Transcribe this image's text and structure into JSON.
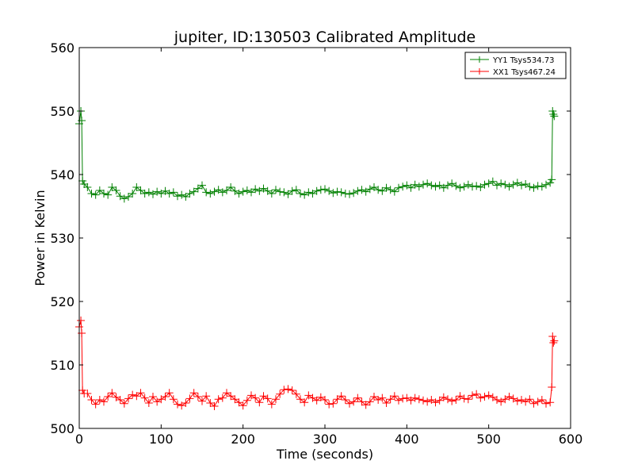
{
  "chart_data": {
    "type": "line",
    "title": "jupiter, ID:130503 Calibrated Amplitude",
    "xlabel": "Time (seconds)",
    "ylabel": "Power in Kelvin",
    "xlim": [
      0,
      600
    ],
    "ylim": [
      500,
      560
    ],
    "xticks": [
      0,
      100,
      200,
      300,
      400,
      500,
      600
    ],
    "yticks": [
      500,
      510,
      520,
      530,
      540,
      550,
      560
    ],
    "grid": false,
    "legend_position": "top-right",
    "marker": "+",
    "series": [
      {
        "name": "YY1 Tsys534.73",
        "color": "#008000",
        "x": [
          0,
          2,
          3,
          4,
          6,
          10,
          15,
          20,
          25,
          30,
          35,
          40,
          45,
          50,
          55,
          60,
          65,
          70,
          75,
          80,
          85,
          90,
          95,
          100,
          105,
          110,
          115,
          120,
          125,
          130,
          135,
          140,
          145,
          150,
          155,
          160,
          165,
          170,
          175,
          180,
          185,
          190,
          195,
          200,
          205,
          210,
          215,
          220,
          225,
          230,
          235,
          240,
          245,
          250,
          255,
          260,
          265,
          270,
          275,
          280,
          285,
          290,
          295,
          300,
          305,
          310,
          315,
          320,
          325,
          330,
          335,
          340,
          345,
          350,
          355,
          360,
          365,
          370,
          375,
          380,
          385,
          390,
          395,
          400,
          405,
          410,
          415,
          420,
          425,
          430,
          435,
          440,
          445,
          450,
          455,
          460,
          465,
          470,
          475,
          480,
          485,
          490,
          495,
          500,
          505,
          510,
          515,
          520,
          525,
          530,
          535,
          540,
          545,
          550,
          555,
          560,
          565,
          570,
          575,
          577,
          578,
          579,
          580
        ],
        "y": [
          548,
          550,
          548.5,
          539,
          538.5,
          538,
          537,
          536.8,
          537.5,
          537,
          536.8,
          538,
          537.5,
          536.6,
          536.2,
          536.5,
          537,
          538,
          537.5,
          537,
          537.2,
          536.9,
          537.3,
          537,
          537.4,
          537,
          537.2,
          536.6,
          536.8,
          536.5,
          537,
          537.3,
          537.8,
          538.3,
          537.2,
          537,
          537.3,
          537.6,
          537.2,
          537.5,
          538,
          537.4,
          537,
          537.3,
          537.5,
          537.2,
          537.7,
          537.4,
          537.8,
          537.4,
          537,
          537.6,
          537.3,
          537.2,
          536.9,
          537.4,
          537.6,
          537,
          536.8,
          537.2,
          537,
          537.4,
          537.6,
          537.7,
          537.4,
          537.1,
          537.3,
          537.2,
          537,
          536.9,
          537.1,
          537.4,
          537.6,
          537.3,
          537.7,
          538,
          537.6,
          537.4,
          537.9,
          537.6,
          537.3,
          537.9,
          538.1,
          538.3,
          537.9,
          538.4,
          538.1,
          538.4,
          538.6,
          538.3,
          538.1,
          538.3,
          537.9,
          538.3,
          538.6,
          538.2,
          537.9,
          538.1,
          538.4,
          538.1,
          538.2,
          538,
          538.4,
          538.6,
          538.9,
          538.3,
          538.6,
          538.4,
          538.1,
          538.4,
          538.7,
          538.3,
          538.5,
          538.1,
          537.9,
          538.2,
          538.1,
          538.4,
          538.7,
          539.2,
          550,
          549.5,
          549.2
        ]
      },
      {
        "name": "XX1 Tsys467.24",
        "color": "#ff0000",
        "x": [
          0,
          2,
          3,
          4,
          6,
          10,
          15,
          20,
          25,
          30,
          35,
          40,
          45,
          50,
          55,
          60,
          65,
          70,
          75,
          80,
          85,
          90,
          95,
          100,
          105,
          110,
          115,
          120,
          125,
          130,
          135,
          140,
          145,
          150,
          155,
          160,
          165,
          170,
          175,
          180,
          185,
          190,
          195,
          200,
          205,
          210,
          215,
          220,
          225,
          230,
          235,
          240,
          245,
          250,
          255,
          260,
          265,
          270,
          275,
          280,
          285,
          290,
          295,
          300,
          305,
          310,
          315,
          320,
          325,
          330,
          335,
          340,
          345,
          350,
          355,
          360,
          365,
          370,
          375,
          380,
          385,
          390,
          395,
          400,
          405,
          410,
          415,
          420,
          425,
          430,
          435,
          440,
          445,
          450,
          455,
          460,
          465,
          470,
          475,
          480,
          485,
          490,
          495,
          500,
          505,
          510,
          515,
          520,
          525,
          530,
          535,
          540,
          545,
          550,
          555,
          560,
          565,
          570,
          575,
          577,
          578,
          579,
          580
        ],
        "y": [
          516,
          517,
          515,
          506,
          505.5,
          505.5,
          504.5,
          503.8,
          504.5,
          504.2,
          505,
          505.6,
          504.9,
          504.5,
          503.9,
          504.7,
          505.3,
          505.1,
          505.6,
          504.8,
          504,
          505,
          504.2,
          504.6,
          505,
          505.6,
          504.6,
          503.8,
          503.6,
          504,
          504.7,
          505.6,
          505,
          504.3,
          505.1,
          504,
          503.5,
          504.6,
          504.8,
          505.6,
          505.1,
          504.6,
          504.1,
          503.6,
          504.4,
          505.2,
          504.8,
          504.1,
          505.1,
          504.7,
          503.8,
          504.6,
          505.4,
          506.1,
          506.2,
          506,
          505.4,
          504.6,
          504.1,
          505.2,
          504.8,
          504.4,
          504.9,
          504.5,
          503.8,
          503.9,
          504.6,
          505.1,
          504.5,
          503.9,
          504.2,
          504.8,
          504.2,
          503.7,
          504.2,
          505,
          504.5,
          504.8,
          504,
          504.6,
          505.1,
          504.4,
          504.7,
          504.8,
          504.4,
          504.8,
          504.6,
          504.4,
          504.2,
          504.5,
          504.1,
          504.4,
          504.9,
          504.6,
          504.3,
          504.5,
          505.1,
          504.7,
          504.6,
          505.2,
          505.4,
          504.8,
          505,
          505.2,
          504.9,
          504.5,
          504.2,
          504.6,
          505,
          504.7,
          504.3,
          504.5,
          504.2,
          504.6,
          503.9,
          504.2,
          504.5,
          503.9,
          504.1,
          506.5,
          514.5,
          513.5,
          513.8
        ]
      }
    ]
  }
}
